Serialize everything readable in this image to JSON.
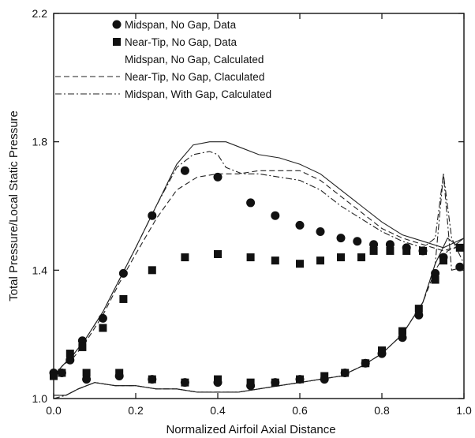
{
  "chart_data": {
    "type": "scatter",
    "xlabel": "Normalized Airfoil Axial Distance",
    "ylabel": "Total Pressure/Local Static Pressure",
    "xlim": [
      0.0,
      1.0
    ],
    "ylim": [
      1.0,
      2.2
    ],
    "xticks": [
      0.0,
      0.2,
      0.4,
      0.6,
      0.8,
      1.0
    ],
    "xtick_labels": [
      "0.0",
      "0.2",
      "0.4",
      "0.6",
      "0.8",
      "1.0"
    ],
    "yticks": [
      1.0,
      1.4,
      1.8,
      2.2
    ],
    "ytick_labels": [
      "1.0",
      "1.4",
      "1.8",
      "2.2"
    ],
    "grid": false,
    "legend_position": "top-left",
    "series": [
      {
        "name": "Midspan, No Gap,  Data",
        "kind": "markers",
        "marker": "circle",
        "points": [
          [
            0.0,
            1.08
          ],
          [
            0.04,
            1.12
          ],
          [
            0.07,
            1.18
          ],
          [
            0.12,
            1.25
          ],
          [
            0.17,
            1.39
          ],
          [
            0.24,
            1.57
          ],
          [
            0.32,
            1.71
          ],
          [
            0.4,
            1.69
          ],
          [
            0.48,
            1.61
          ],
          [
            0.54,
            1.57
          ],
          [
            0.6,
            1.54
          ],
          [
            0.65,
            1.52
          ],
          [
            0.7,
            1.5
          ],
          [
            0.74,
            1.49
          ],
          [
            0.78,
            1.48
          ],
          [
            0.82,
            1.48
          ],
          [
            0.86,
            1.47
          ],
          [
            0.9,
            1.46
          ],
          [
            0.95,
            1.44
          ],
          [
            0.99,
            1.41
          ],
          [
            0.02,
            1.08
          ],
          [
            0.08,
            1.06
          ],
          [
            0.16,
            1.07
          ],
          [
            0.24,
            1.06
          ],
          [
            0.32,
            1.05
          ],
          [
            0.4,
            1.05
          ],
          [
            0.48,
            1.04
          ],
          [
            0.54,
            1.05
          ],
          [
            0.6,
            1.06
          ],
          [
            0.66,
            1.06
          ],
          [
            0.71,
            1.08
          ],
          [
            0.76,
            1.11
          ],
          [
            0.8,
            1.14
          ],
          [
            0.85,
            1.19
          ],
          [
            0.89,
            1.26
          ],
          [
            0.93,
            1.39
          ]
        ]
      },
      {
        "name": "Near-Tip, No Gap, Data",
        "kind": "markers",
        "marker": "square",
        "points": [
          [
            0.0,
            1.07
          ],
          [
            0.04,
            1.14
          ],
          [
            0.07,
            1.16
          ],
          [
            0.12,
            1.22
          ],
          [
            0.17,
            1.31
          ],
          [
            0.24,
            1.4
          ],
          [
            0.32,
            1.44
          ],
          [
            0.4,
            1.45
          ],
          [
            0.48,
            1.44
          ],
          [
            0.54,
            1.43
          ],
          [
            0.6,
            1.42
          ],
          [
            0.65,
            1.43
          ],
          [
            0.7,
            1.44
          ],
          [
            0.75,
            1.44
          ],
          [
            0.78,
            1.46
          ],
          [
            0.82,
            1.46
          ],
          [
            0.86,
            1.46
          ],
          [
            0.9,
            1.46
          ],
          [
            0.95,
            1.43
          ],
          [
            0.99,
            1.47
          ],
          [
            0.02,
            1.08
          ],
          [
            0.08,
            1.08
          ],
          [
            0.16,
            1.08
          ],
          [
            0.24,
            1.06
          ],
          [
            0.32,
            1.05
          ],
          [
            0.4,
            1.06
          ],
          [
            0.48,
            1.05
          ],
          [
            0.54,
            1.05
          ],
          [
            0.6,
            1.06
          ],
          [
            0.66,
            1.07
          ],
          [
            0.71,
            1.08
          ],
          [
            0.76,
            1.11
          ],
          [
            0.8,
            1.15
          ],
          [
            0.85,
            1.21
          ],
          [
            0.89,
            1.28
          ],
          [
            0.93,
            1.37
          ]
        ]
      },
      {
        "name": "Midspan,  No Gap, Calculated",
        "kind": "line",
        "dash": "solid",
        "points": [
          [
            0.0,
            1.07
          ],
          [
            0.02,
            1.1
          ],
          [
            0.05,
            1.14
          ],
          [
            0.08,
            1.19
          ],
          [
            0.12,
            1.27
          ],
          [
            0.16,
            1.37
          ],
          [
            0.2,
            1.47
          ],
          [
            0.25,
            1.6
          ],
          [
            0.3,
            1.73
          ],
          [
            0.34,
            1.79
          ],
          [
            0.38,
            1.8
          ],
          [
            0.42,
            1.8
          ],
          [
            0.46,
            1.78
          ],
          [
            0.5,
            1.76
          ],
          [
            0.55,
            1.75
          ],
          [
            0.6,
            1.73
          ],
          [
            0.65,
            1.7
          ],
          [
            0.7,
            1.65
          ],
          [
            0.75,
            1.6
          ],
          [
            0.8,
            1.55
          ],
          [
            0.85,
            1.51
          ],
          [
            0.9,
            1.49
          ],
          [
            0.95,
            1.47
          ],
          [
            1.0,
            1.5
          ],
          [
            0.0,
            1.01
          ],
          [
            0.03,
            1.01
          ],
          [
            0.06,
            1.03
          ],
          [
            0.1,
            1.05
          ],
          [
            0.15,
            1.04
          ],
          [
            0.2,
            1.04
          ],
          [
            0.25,
            1.03
          ],
          [
            0.3,
            1.03
          ],
          [
            0.35,
            1.02
          ],
          [
            0.4,
            1.02
          ],
          [
            0.45,
            1.02
          ],
          [
            0.5,
            1.03
          ],
          [
            0.55,
            1.04
          ],
          [
            0.6,
            1.05
          ],
          [
            0.65,
            1.06
          ],
          [
            0.7,
            1.07
          ],
          [
            0.75,
            1.1
          ],
          [
            0.8,
            1.14
          ],
          [
            0.85,
            1.2
          ],
          [
            0.9,
            1.3
          ],
          [
            0.93,
            1.42
          ],
          [
            0.96,
            1.5
          ],
          [
            0.98,
            1.48
          ],
          [
            1.0,
            1.5
          ]
        ]
      },
      {
        "name": "Near-Tip, No Gap, Claculated",
        "kind": "line",
        "dash": "dashed",
        "points": [
          [
            0.0,
            1.07
          ],
          [
            0.02,
            1.1
          ],
          [
            0.05,
            1.13
          ],
          [
            0.08,
            1.18
          ],
          [
            0.12,
            1.26
          ],
          [
            0.16,
            1.36
          ],
          [
            0.2,
            1.45
          ],
          [
            0.25,
            1.56
          ],
          [
            0.3,
            1.65
          ],
          [
            0.35,
            1.69
          ],
          [
            0.4,
            1.7
          ],
          [
            0.45,
            1.7
          ],
          [
            0.5,
            1.71
          ],
          [
            0.55,
            1.71
          ],
          [
            0.6,
            1.71
          ],
          [
            0.65,
            1.68
          ],
          [
            0.7,
            1.63
          ],
          [
            0.75,
            1.58
          ],
          [
            0.8,
            1.53
          ],
          [
            0.85,
            1.5
          ],
          [
            0.9,
            1.48
          ],
          [
            0.95,
            1.46
          ],
          [
            1.0,
            1.48
          ],
          [
            0.0,
            1.01
          ],
          [
            0.03,
            1.01
          ],
          [
            0.06,
            1.03
          ],
          [
            0.1,
            1.05
          ],
          [
            0.15,
            1.04
          ],
          [
            0.2,
            1.04
          ],
          [
            0.25,
            1.03
          ],
          [
            0.3,
            1.03
          ],
          [
            0.35,
            1.02
          ],
          [
            0.4,
            1.02
          ],
          [
            0.45,
            1.02
          ],
          [
            0.5,
            1.03
          ],
          [
            0.55,
            1.04
          ],
          [
            0.6,
            1.05
          ],
          [
            0.65,
            1.06
          ],
          [
            0.7,
            1.07
          ],
          [
            0.75,
            1.1
          ],
          [
            0.8,
            1.14
          ],
          [
            0.85,
            1.2
          ],
          [
            0.9,
            1.3
          ],
          [
            0.93,
            1.4
          ],
          [
            0.96,
            1.46
          ],
          [
            1.0,
            1.48
          ]
        ]
      },
      {
        "name": "Midspan, With Gap, Calculated",
        "kind": "line",
        "dash": "dash-dot",
        "points": [
          [
            0.0,
            1.07
          ],
          [
            0.02,
            1.1
          ],
          [
            0.05,
            1.14
          ],
          [
            0.08,
            1.19
          ],
          [
            0.12,
            1.27
          ],
          [
            0.16,
            1.37
          ],
          [
            0.2,
            1.47
          ],
          [
            0.25,
            1.6
          ],
          [
            0.3,
            1.72
          ],
          [
            0.34,
            1.76
          ],
          [
            0.38,
            1.77
          ],
          [
            0.4,
            1.76
          ],
          [
            0.42,
            1.72
          ],
          [
            0.46,
            1.7
          ],
          [
            0.5,
            1.7
          ],
          [
            0.55,
            1.69
          ],
          [
            0.6,
            1.68
          ],
          [
            0.65,
            1.65
          ],
          [
            0.7,
            1.6
          ],
          [
            0.75,
            1.56
          ],
          [
            0.8,
            1.52
          ],
          [
            0.85,
            1.49
          ],
          [
            0.9,
            1.47
          ],
          [
            0.93,
            1.5
          ],
          [
            0.95,
            1.7
          ],
          [
            0.97,
            1.5
          ],
          [
            1.0,
            1.42
          ],
          [
            0.0,
            1.0
          ],
          [
            0.03,
            1.01
          ],
          [
            0.06,
            1.03
          ],
          [
            0.1,
            1.05
          ],
          [
            0.15,
            1.04
          ],
          [
            0.2,
            1.04
          ],
          [
            0.25,
            1.03
          ],
          [
            0.3,
            1.03
          ],
          [
            0.35,
            1.02
          ],
          [
            0.4,
            1.02
          ],
          [
            0.45,
            1.02
          ],
          [
            0.5,
            1.03
          ],
          [
            0.55,
            1.04
          ],
          [
            0.6,
            1.05
          ],
          [
            0.65,
            1.06
          ],
          [
            0.7,
            1.07
          ],
          [
            0.75,
            1.1
          ],
          [
            0.8,
            1.14
          ],
          [
            0.85,
            1.2
          ],
          [
            0.9,
            1.3
          ],
          [
            0.93,
            1.42
          ],
          [
            0.95,
            1.7
          ],
          [
            0.97,
            1.4
          ],
          [
            1.0,
            1.41
          ]
        ]
      }
    ]
  }
}
